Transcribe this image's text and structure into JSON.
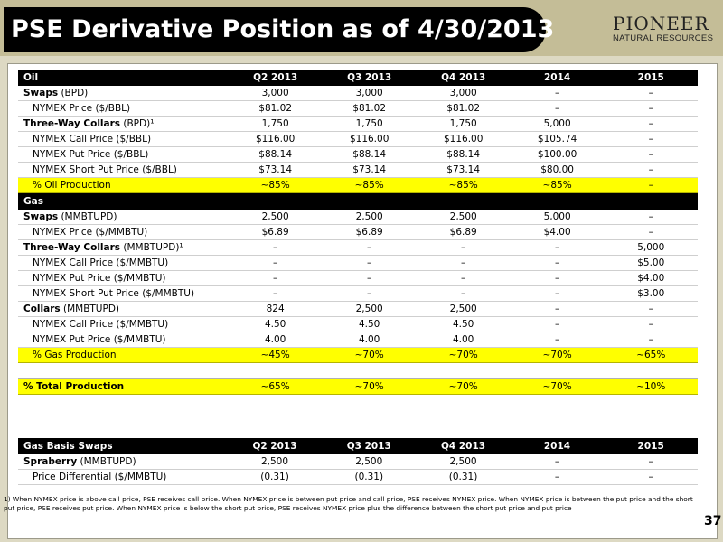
{
  "title": "PSE Derivative Position as of 4/30/2013",
  "logo": {
    "line1": "PIONEER",
    "line2": "NATURAL RESOURCES"
  },
  "columns": [
    "Q2 2013",
    "Q3 2013",
    "Q4 2013",
    "2014",
    "2015"
  ],
  "oil_header": "Oil",
  "gas_header": "Gas",
  "oil_rows": [
    {
      "label": "Swaps",
      "suffix": " (BPD)",
      "values": [
        "3,000",
        "3,000",
        "3,000",
        "–",
        "–"
      ]
    },
    {
      "label": "NYMEX Price ($/BBL)",
      "values": [
        "$81.02",
        "$81.02",
        "$81.02",
        "–",
        "–"
      ]
    },
    {
      "label": "Three-Way Collars",
      "suffix": " (BPD)¹",
      "values": [
        "1,750",
        "1,750",
        "1,750",
        "5,000",
        "–"
      ]
    },
    {
      "label": "NYMEX Call Price ($/BBL)",
      "values": [
        "$116.00",
        "$116.00",
        "$116.00",
        "$105.74",
        "–"
      ]
    },
    {
      "label": "NYMEX Put Price ($/BBL)",
      "values": [
        "$88.14",
        "$88.14",
        "$88.14",
        "$100.00",
        "–"
      ]
    },
    {
      "label": "NYMEX Short Put Price ($/BBL)",
      "values": [
        "$73.14",
        "$73.14",
        "$73.14",
        "$80.00",
        "–"
      ]
    }
  ],
  "oil_production": {
    "label": "% Oil Production",
    "values": [
      "~85%",
      "~85%",
      "~85%",
      "~85%",
      "–"
    ]
  },
  "gas_rows": [
    {
      "label": "Swaps",
      "suffix": " (MMBTUPD)",
      "values": [
        "2,500",
        "2,500",
        "2,500",
        "5,000",
        "–"
      ]
    },
    {
      "label": "NYMEX Price ($/MMBTU)",
      "values": [
        "$6.89",
        "$6.89",
        "$6.89",
        "$4.00",
        "–"
      ]
    },
    {
      "label": "Three-Way Collars",
      "suffix": " (MMBTUPD)¹",
      "values": [
        "–",
        "–",
        "–",
        "–",
        "5,000"
      ]
    },
    {
      "label": "NYMEX Call Price ($/MMBTU)",
      "values": [
        "–",
        "–",
        "–",
        "–",
        "$5.00"
      ]
    },
    {
      "label": "NYMEX Put Price ($/MMBTU)",
      "values": [
        "–",
        "–",
        "–",
        "–",
        "$4.00"
      ]
    },
    {
      "label": "NYMEX Short Put Price ($/MMBTU)",
      "values": [
        "–",
        "–",
        "–",
        "–",
        "$3.00"
      ]
    },
    {
      "label": "Collars",
      "suffix": " (MMBTUPD)",
      "values": [
        "824",
        "2,500",
        "2,500",
        "–",
        "–"
      ]
    },
    {
      "label": "NYMEX Call Price ($/MMBTU)",
      "values": [
        "4.50",
        "4.50",
        "4.50",
        "–",
        "–"
      ]
    },
    {
      "label": "NYMEX Put Price ($/MMBTU)",
      "values": [
        "4.00",
        "4.00",
        "4.00",
        "–",
        "–"
      ]
    }
  ],
  "gas_production": {
    "label": "% Gas Production",
    "values": [
      "~45%",
      "~70%",
      "~70%",
      "~70%",
      "~65%"
    ]
  },
  "total_production": {
    "label": "% Total Production",
    "values": [
      "~65%",
      "~70%",
      "~70%",
      "~70%",
      "~10%"
    ]
  },
  "basis_header": "Gas Basis Swaps",
  "basis_rows": [
    {
      "label": "Spraberry",
      "suffix": " (MMBTUPD)",
      "values": [
        "2,500",
        "2,500",
        "2,500",
        "–",
        "–"
      ]
    },
    {
      "label": "Price Differential ($/MMBTU)",
      "values": [
        "(0.31)",
        "(0.31)",
        "(0.31)",
        "–",
        "–"
      ]
    }
  ],
  "footnote": "1) When NYMEX price is above call price, PSE receives call price.  When NYMEX price is between put price and call price, PSE receives NYMEX price.  When NYMEX price is between the put price and the short put price, PSE receives put price.  When NYMEX price is below the short put price, PSE receives NYMEX price plus the difference between the short put price and put price",
  "page_number": "37",
  "colors": {
    "header_band": "#c4bd97",
    "title_bg": "#000000",
    "highlight": "#ffff00",
    "background": "#ddd9c3"
  }
}
